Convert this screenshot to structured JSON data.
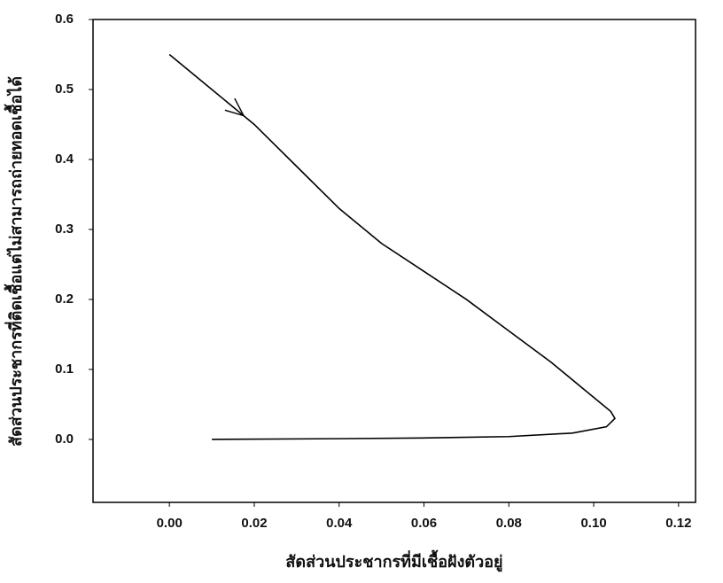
{
  "chart_data": {
    "type": "line",
    "x_label": "สัดส่วนประชากรที่มีเชื้อฝังตัวอยู่",
    "y_label": "สัดส่วนประชากรที่ติดเชื้อแต่ไม่สามารถถ่ายทอดเชื้อได้",
    "xlim": [
      -0.018,
      0.124
    ],
    "ylim": [
      -0.09,
      0.6
    ],
    "xticks": [
      {
        "value": 0,
        "label": "0.00"
      },
      {
        "value": 0.02,
        "label": "0.02"
      },
      {
        "value": 0.04,
        "label": "0.04"
      },
      {
        "value": 0.06,
        "label": "0.06"
      },
      {
        "value": 0.08,
        "label": "0.08"
      },
      {
        "value": 0.1,
        "label": "0.10"
      },
      {
        "value": 0.12,
        "label": "0.12"
      }
    ],
    "yticks": [
      {
        "value": 0,
        "label": "0.0"
      },
      0.1,
      0.2,
      0.3,
      0.4,
      0.5,
      0.6
    ],
    "series": [
      {
        "color": "#000000",
        "x": [
          0.0,
          0.01,
          0.02,
          0.03,
          0.04,
          0.05,
          0.06,
          0.07,
          0.08,
          0.09,
          0.098,
          0.104,
          0.105,
          0.103,
          0.095,
          0.08,
          0.06,
          0.04,
          0.01
        ],
        "values": [
          0.55,
          0.5,
          0.45,
          0.39,
          0.33,
          0.28,
          0.24,
          0.2,
          0.155,
          0.11,
          0.07,
          0.04,
          0.03,
          0.018,
          0.009,
          0.004,
          0.002,
          0.001,
          0.0
        ]
      }
    ]
  }
}
